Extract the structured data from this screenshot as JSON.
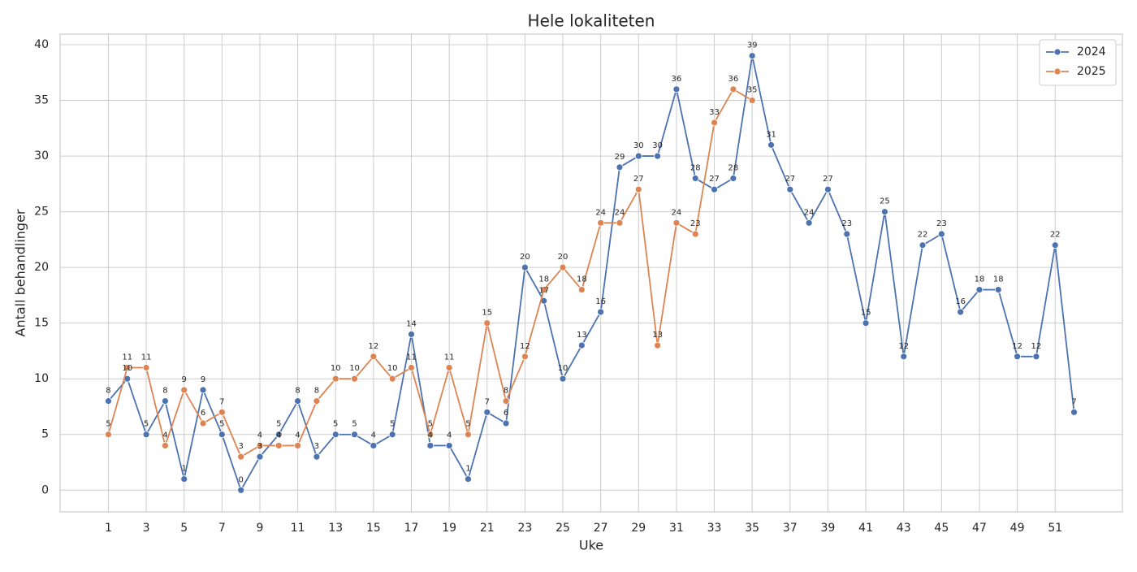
{
  "chart_data": {
    "type": "line",
    "title": "Hele lokaliteten",
    "xlabel": "Uke",
    "ylabel": "Antall behandlinger",
    "series": [
      {
        "name": "2024",
        "color": "#4c72b0",
        "x": [
          1,
          2,
          3,
          4,
          5,
          6,
          7,
          8,
          9,
          10,
          11,
          12,
          13,
          14,
          15,
          16,
          17,
          18,
          19,
          20,
          21,
          22,
          23,
          24,
          25,
          26,
          27,
          28,
          29,
          30,
          31,
          32,
          33,
          34,
          35,
          36,
          37,
          38,
          39,
          40,
          41,
          42,
          43,
          44,
          45,
          46,
          47,
          48,
          49,
          50,
          51,
          52
        ],
        "values": [
          8,
          10,
          5,
          8,
          1,
          9,
          5,
          0,
          3,
          5,
          8,
          3,
          5,
          5,
          4,
          5,
          14,
          4,
          4,
          1,
          7,
          6,
          20,
          17,
          10,
          13,
          16,
          29,
          30,
          30,
          36,
          28,
          27,
          28,
          39,
          31,
          27,
          24,
          27,
          23,
          15,
          25,
          12,
          22,
          23,
          16,
          18,
          18,
          12,
          12,
          22,
          7
        ]
      },
      {
        "name": "2025",
        "color": "#dd8452",
        "x": [
          1,
          2,
          3,
          4,
          5,
          6,
          7,
          8,
          9,
          10,
          11,
          12,
          13,
          14,
          15,
          16,
          17,
          18,
          19,
          20,
          21,
          22,
          23,
          24,
          25,
          26,
          27,
          28,
          29,
          30,
          31,
          32,
          33,
          34,
          35
        ],
        "values": [
          5,
          11,
          11,
          4,
          9,
          6,
          7,
          3,
          4,
          4,
          4,
          8,
          10,
          10,
          12,
          10,
          11,
          5,
          11,
          5,
          15,
          8,
          12,
          18,
          20,
          18,
          24,
          24,
          27,
          13,
          24,
          23,
          33,
          36,
          35
        ]
      }
    ],
    "xlim": [
      -1.55,
      54.55
    ],
    "xticks": [
      1,
      3,
      5,
      7,
      9,
      11,
      13,
      15,
      17,
      19,
      21,
      23,
      25,
      27,
      29,
      31,
      33,
      35,
      37,
      39,
      41,
      43,
      45,
      47,
      49,
      51
    ],
    "ylim": [
      -1.95,
      40.95
    ],
    "yticks": [
      0,
      5,
      10,
      15,
      20,
      25,
      30,
      35,
      40
    ],
    "grid": true,
    "legend": "upper right"
  }
}
